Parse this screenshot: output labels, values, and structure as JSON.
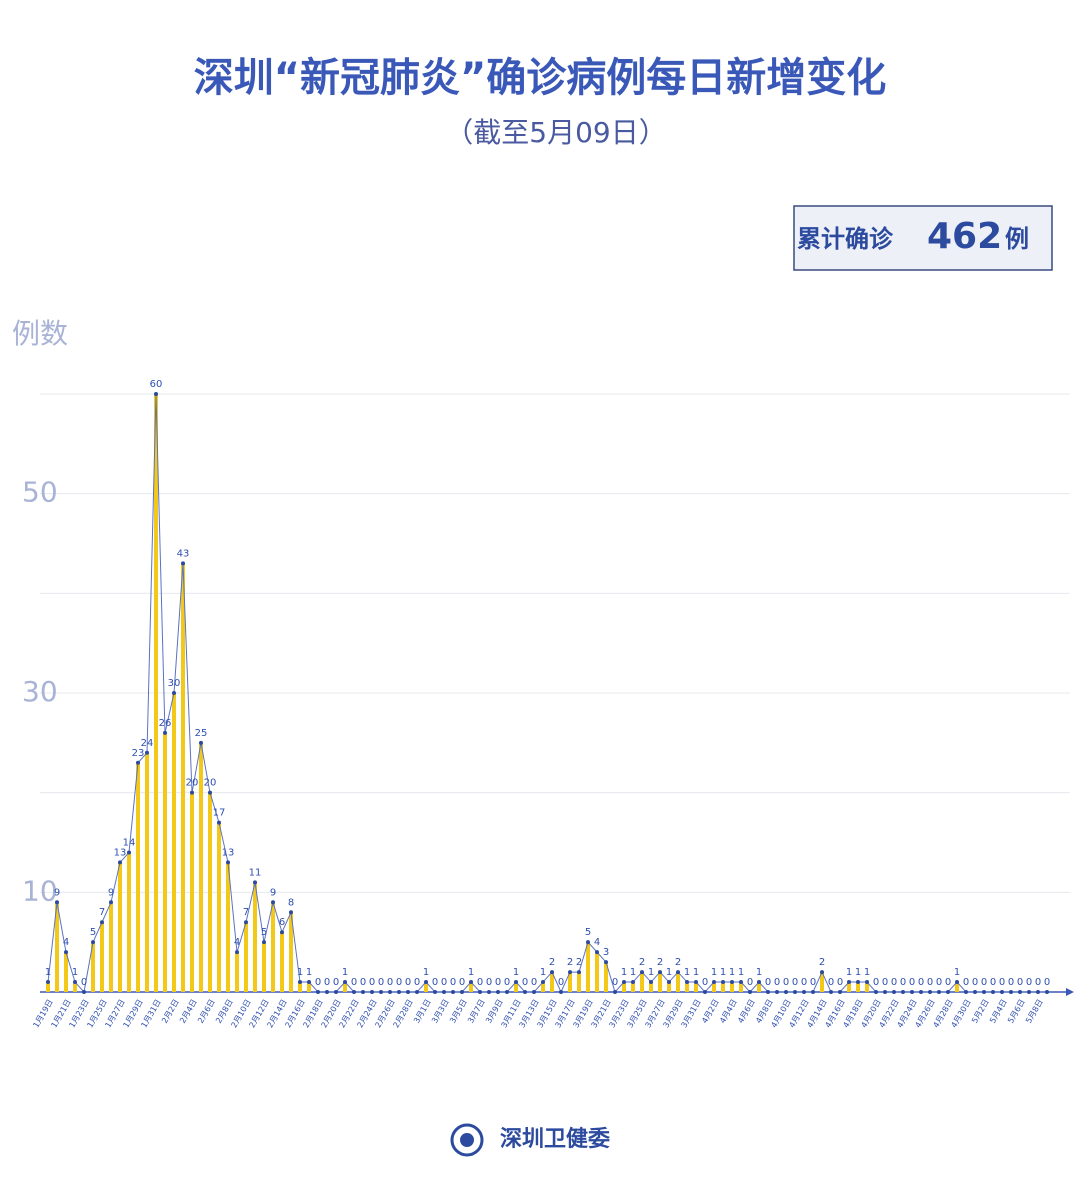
{
  "chart_data": {
    "type": "line",
    "title": "深圳“新冠肺炎”确诊病例每日新增变化",
    "subtitle": "（截至5月09日）",
    "y_label": "例数",
    "total_box": {
      "prefix": "累计确诊",
      "value": 462,
      "suffix": "例"
    },
    "source": "深圳卫健委",
    "categories": [
      "1月19日",
      null,
      "1月21日",
      null,
      "1月23日",
      null,
      "1月25日",
      null,
      "1月27日",
      null,
      "1月29日",
      null,
      "1月31日",
      null,
      "2月2日",
      null,
      "2月4日",
      null,
      "2月6日",
      null,
      "2月8日",
      null,
      "2月10日",
      null,
      "2月12日",
      null,
      "2月14日",
      null,
      "2月16日",
      null,
      "2月18日",
      null,
      "2月20日",
      null,
      "2月22日",
      null,
      "2月24日",
      null,
      "2月26日",
      null,
      "2月28日",
      null,
      "3月1日",
      null,
      "3月3日",
      null,
      "3月5日",
      null,
      "3月7日",
      null,
      "3月9日",
      null,
      "3月11日",
      null,
      "3月13日",
      null,
      "3月15日",
      null,
      "3月17日",
      null,
      "3月19日",
      null,
      "3月21日",
      null,
      "3月23日",
      null,
      "3月25日",
      null,
      "3月27日",
      null,
      "3月29日",
      null,
      "3月31日",
      null,
      "4月2日",
      null,
      "4月4日",
      null,
      "4月6日",
      null,
      "4月8日",
      null,
      "4月10日",
      null,
      "4月12日",
      null,
      "4月14日",
      null,
      "4月16日",
      null,
      "4月18日",
      null,
      "4月20日",
      null,
      "4月22日",
      null,
      "4月24日",
      null,
      "4月26日",
      null,
      "4月28日",
      null,
      "4月30日",
      null,
      "5月2日",
      null,
      "5月4日",
      null,
      "5月6日",
      null,
      "5月8日",
      null
    ],
    "values": [
      1,
      9,
      4,
      1,
      0,
      5,
      7,
      9,
      13,
      14,
      23,
      24,
      60,
      26,
      30,
      43,
      20,
      25,
      20,
      17,
      13,
      4,
      7,
      11,
      5,
      9,
      6,
      8,
      1,
      1,
      0,
      0,
      0,
      1,
      0,
      0,
      0,
      0,
      0,
      0,
      0,
      0,
      1,
      0,
      0,
      0,
      0,
      1,
      0,
      0,
      0,
      0,
      1,
      0,
      0,
      1,
      2,
      0,
      2,
      2,
      5,
      4,
      3,
      0,
      1,
      1,
      2,
      1,
      2,
      1,
      2,
      1,
      1,
      0,
      1,
      1,
      1,
      1,
      0,
      1,
      0,
      0,
      0,
      0,
      0,
      0,
      2,
      0,
      0,
      1,
      1,
      1,
      0,
      0,
      0,
      0,
      0,
      0,
      0,
      0,
      0,
      1,
      0,
      0,
      0,
      0,
      0,
      0,
      0,
      0,
      0,
      0
    ],
    "ylim": [
      0,
      60
    ],
    "yticks": [
      10,
      30,
      50
    ],
    "minor_yticks": [
      20,
      40,
      60
    ],
    "grid": true,
    "bar_color": "#f2c919",
    "line_color": "#5a72c4",
    "point_color": "#2c4a9e",
    "label_color": "#2f4fb0"
  }
}
